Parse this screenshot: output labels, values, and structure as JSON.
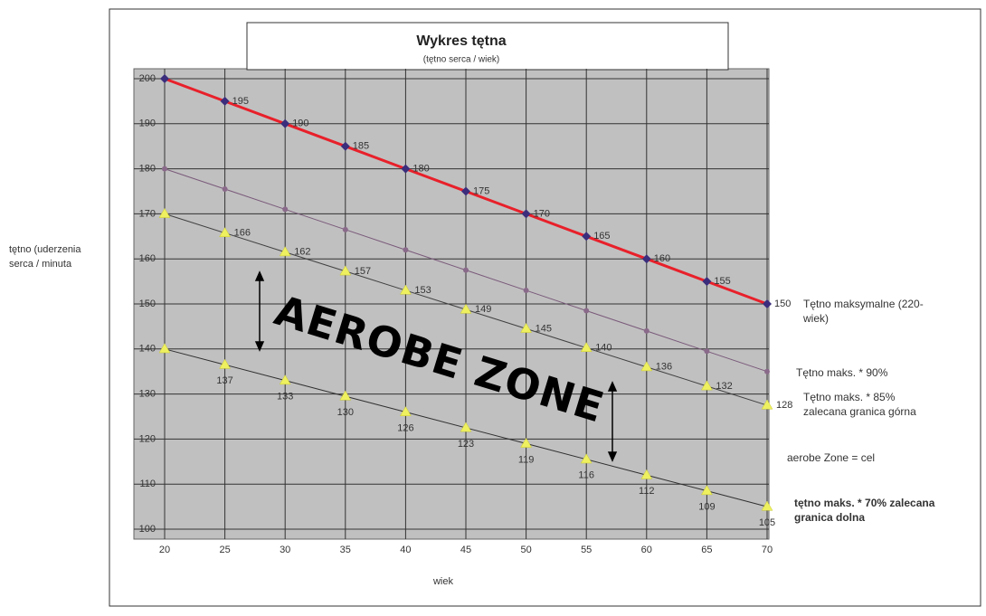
{
  "chart_data": {
    "type": "line",
    "title": "Wykres tętna",
    "subtitle": "(tętno serca / wiek)",
    "y_label": "tętno (uderzenia serca / minuta",
    "x_label": "wiek",
    "annotations": [
      "AEROBE ZONE",
      "aerobe Zone = cel"
    ],
    "x": [
      20,
      25,
      30,
      35,
      40,
      45,
      50,
      55,
      60,
      65,
      70
    ],
    "xlim": [
      20,
      70
    ],
    "xticks": [
      20,
      25,
      30,
      35,
      40,
      45,
      50,
      55,
      60,
      65,
      70
    ],
    "ylim": [
      100,
      200
    ],
    "yticks": [
      100,
      110,
      120,
      130,
      140,
      150,
      160,
      170,
      180,
      190,
      200
    ],
    "grid": true,
    "series": [
      {
        "name": "Tętno maksymalne (220-wiek)",
        "color": "#e8202a",
        "marker_color": "#3b2d7c",
        "values": [
          200,
          195,
          190,
          185,
          180,
          175,
          170,
          165,
          160,
          155,
          150
        ],
        "value_labels": [
          null,
          "195",
          "190",
          "185",
          "180",
          "175",
          "170",
          "165",
          "160",
          "155",
          "150"
        ]
      },
      {
        "name": "Tętno maks. * 90%",
        "color": "#7a5a7a",
        "marker_color": "#8a6a8a",
        "values": [
          180,
          175.5,
          171,
          166.5,
          162,
          157.5,
          153,
          148.5,
          144,
          139.5,
          135
        ]
      },
      {
        "name": "Tętno maks. * 85% zalecana granica górna",
        "color": "#404040",
        "marker_color": "#eef060",
        "values": [
          170,
          165.75,
          161.5,
          157.25,
          153,
          148.75,
          144.5,
          140.25,
          136,
          131.75,
          127.5
        ],
        "value_labels": [
          null,
          "166",
          "162",
          "157",
          "153",
          "149",
          "145",
          "140",
          "136",
          "132",
          "128"
        ]
      },
      {
        "name": "tętno maks. * 70% zalecana granica dolna",
        "color": "#303030",
        "marker_color": "#eef060",
        "values": [
          140,
          136.5,
          133,
          129.5,
          126,
          122.5,
          119,
          115.5,
          112,
          108.5,
          105
        ],
        "value_labels": [
          null,
          "137",
          "133",
          "130",
          "126",
          "123",
          "119",
          "116",
          "112",
          "109",
          "105"
        ]
      }
    ]
  }
}
